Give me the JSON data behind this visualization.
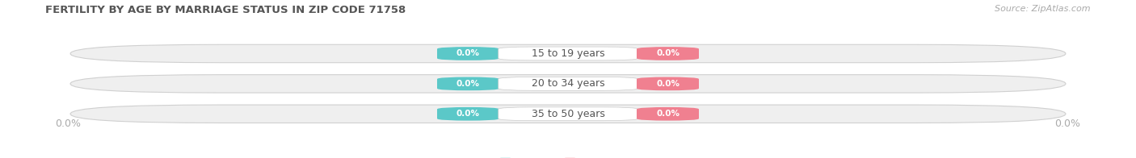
{
  "title": "FERTILITY BY AGE BY MARRIAGE STATUS IN ZIP CODE 71758",
  "source": "Source: ZipAtlas.com",
  "categories": [
    "15 to 19 years",
    "20 to 34 years",
    "35 to 50 years"
  ],
  "married_values": [
    0.0,
    0.0,
    0.0
  ],
  "unmarried_values": [
    0.0,
    0.0,
    0.0
  ],
  "married_color": "#5bc8c8",
  "unmarried_color": "#f08090",
  "bar_bg_color": "#efefef",
  "bar_bg_edge_color": "#d0d0d0",
  "category_label_color": "#555555",
  "title_color": "#555555",
  "axis_label_color": "#aaaaaa",
  "source_color": "#aaaaaa",
  "background_color": "#ffffff",
  "figsize": [
    14.06,
    1.96
  ],
  "dpi": 100
}
